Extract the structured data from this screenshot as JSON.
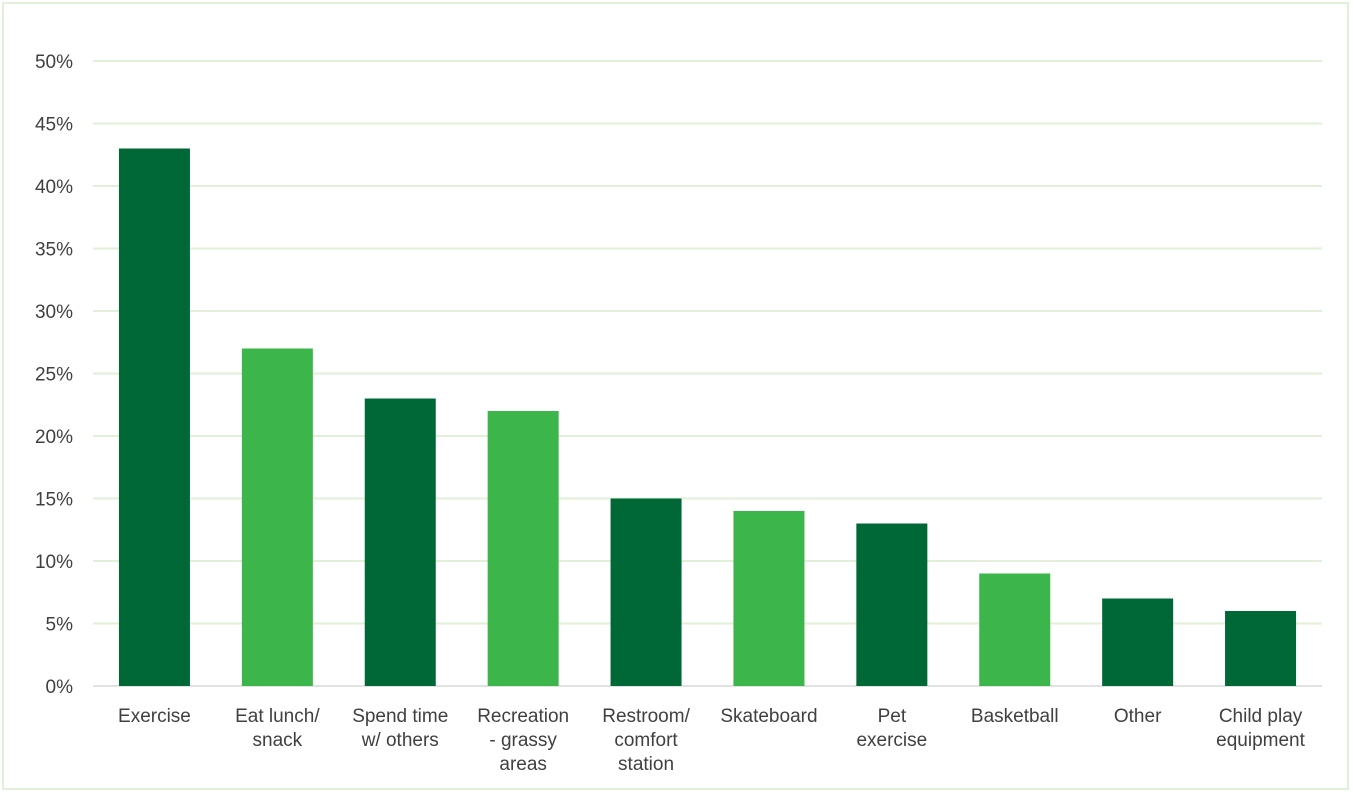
{
  "chart_data": {
    "type": "bar",
    "categories": [
      [
        "Exercise"
      ],
      [
        "Eat lunch/",
        "snack"
      ],
      [
        "Spend time",
        "w/ others"
      ],
      [
        "Recreation",
        "- grassy",
        "areas"
      ],
      [
        "Restroom/",
        "comfort",
        "station"
      ],
      [
        "Skateboard"
      ],
      [
        "Pet",
        "exercise"
      ],
      [
        "Basketball"
      ],
      [
        "Other"
      ],
      [
        "Child play",
        "equipment"
      ]
    ],
    "values": [
      43,
      27,
      23,
      22,
      15,
      14,
      13,
      9,
      7,
      6
    ],
    "bar_colors": [
      "#006837",
      "#3cb54a",
      "#006837",
      "#3cb54a",
      "#006837",
      "#3cb54a",
      "#006837",
      "#3cb54a",
      "#006837",
      "#006837"
    ],
    "ylim": [
      0,
      50
    ],
    "y_ticks": [
      "0%",
      "5%",
      "10%",
      "15%",
      "20%",
      "25%",
      "30%",
      "35%",
      "40%",
      "45%",
      "50%"
    ],
    "grid": true,
    "grid_color": "#e2f0d9",
    "axis_color": "#d9d9d9"
  }
}
